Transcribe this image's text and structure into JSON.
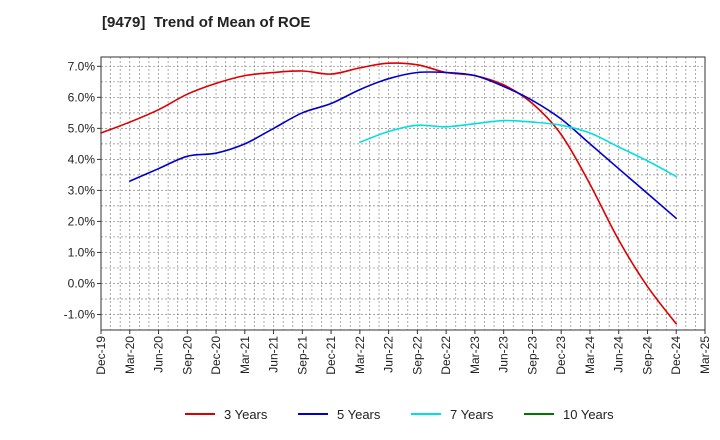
{
  "chart_data": {
    "type": "line",
    "title": "[9479]  Trend of Mean of ROE",
    "xlabel": "",
    "ylabel": "",
    "x_ticks": [
      "Dec-19",
      "Mar-20",
      "Jun-20",
      "Sep-20",
      "Dec-20",
      "Mar-21",
      "Jun-21",
      "Sep-21",
      "Dec-21",
      "Mar-22",
      "Jun-22",
      "Sep-22",
      "Dec-22",
      "Mar-23",
      "Jun-23",
      "Sep-23",
      "Dec-23",
      "Mar-24",
      "Jun-24",
      "Sep-24",
      "Dec-24",
      "Mar-25"
    ],
    "y_ticks": [
      "7.0%",
      "6.0%",
      "5.0%",
      "4.0%",
      "3.0%",
      "2.0%",
      "1.0%",
      "0.0%",
      "-1.0%"
    ],
    "ylim": [
      -1.5,
      7.3
    ],
    "grid": true,
    "legend_position": "bottom",
    "series": [
      {
        "name": "3 Years",
        "color": "#dd0000",
        "start_index": 0,
        "values": [
          4.85,
          5.2,
          5.6,
          6.1,
          6.45,
          6.7,
          6.8,
          6.85,
          6.75,
          6.95,
          7.1,
          7.05,
          6.8,
          6.7,
          6.4,
          5.8,
          4.8,
          3.2,
          1.4,
          -0.1,
          -1.3
        ]
      },
      {
        "name": "5 Years",
        "color": "#0000cc",
        "start_index": 1,
        "values": [
          3.3,
          3.7,
          4.1,
          4.2,
          4.5,
          5.0,
          5.5,
          5.8,
          6.25,
          6.6,
          6.8,
          6.8,
          6.7,
          6.35,
          5.9,
          5.3,
          4.5,
          3.7,
          2.9,
          2.1
        ]
      },
      {
        "name": "7 Years",
        "color": "#00e0e0",
        "start_index": 9,
        "values": [
          4.55,
          4.9,
          5.1,
          5.05,
          5.15,
          5.25,
          5.2,
          5.1,
          4.85,
          4.4,
          3.95,
          3.45
        ]
      },
      {
        "name": "10 Years",
        "color": "#007700",
        "start_index": 0,
        "values": []
      }
    ]
  }
}
